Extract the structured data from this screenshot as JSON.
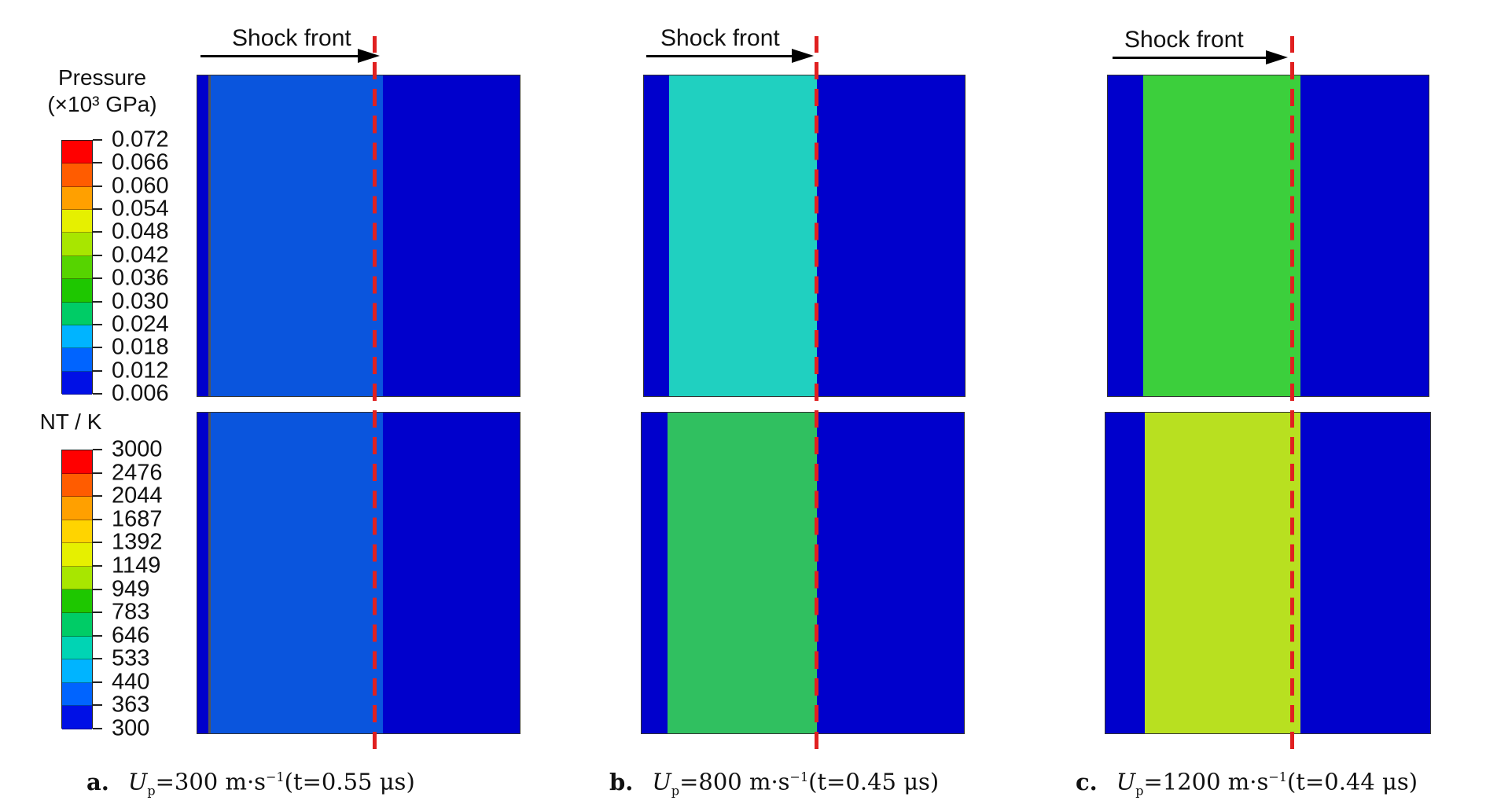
{
  "pressure_legend": {
    "title_line1": "Pressure",
    "title_line2": "(×10³ GPa)",
    "ticks": [
      "0.072",
      "0.066",
      "0.060",
      "0.054",
      "0.048",
      "0.042",
      "0.036",
      "0.030",
      "0.024",
      "0.018",
      "0.012",
      "0.006"
    ]
  },
  "temperature_legend": {
    "title": "NT / K",
    "ticks": [
      "3000",
      "2476",
      "2044",
      "1687",
      "1392",
      "1149",
      "949",
      "783",
      "646",
      "533",
      "440",
      "363",
      "300"
    ]
  },
  "colormap": [
    "#ff0000",
    "#ff5c00",
    "#ffa000",
    "#ffd400",
    "#e6f000",
    "#a8e600",
    "#56d400",
    "#1ec700",
    "#00cc66",
    "#00d4b4",
    "#00b4ff",
    "#0064ff",
    "#0010e6"
  ],
  "panels": [
    {
      "shock_label": "Shock front",
      "caption_letter": "a.",
      "caption_var": "U",
      "caption_sub": "p",
      "caption_value": "=300 m·s",
      "caption_sup": "−1",
      "caption_time": "(t=0.55 μs)",
      "pressure_fill": "#0a55dd",
      "temperature_fill": "#0a55dd"
    },
    {
      "shock_label": "Shock front",
      "caption_letter": "b.",
      "caption_var": "U",
      "caption_sub": "p",
      "caption_value": "=800 m·s",
      "caption_sup": "−1",
      "caption_time": "(t=0.45 μs)",
      "pressure_fill": "#20d0c0",
      "temperature_fill": "#30c060"
    },
    {
      "shock_label": "Shock front",
      "caption_letter": "c.",
      "caption_var": "U",
      "caption_sub": "p",
      "caption_value": "=1200 m·s",
      "caption_sup": "−1",
      "caption_time": "(t=0.44 μs)",
      "pressure_fill": "#3ccf3c",
      "temperature_fill": "#b8e020"
    }
  ],
  "background_color": "#0000cc",
  "shock_line_color": "#e02020"
}
